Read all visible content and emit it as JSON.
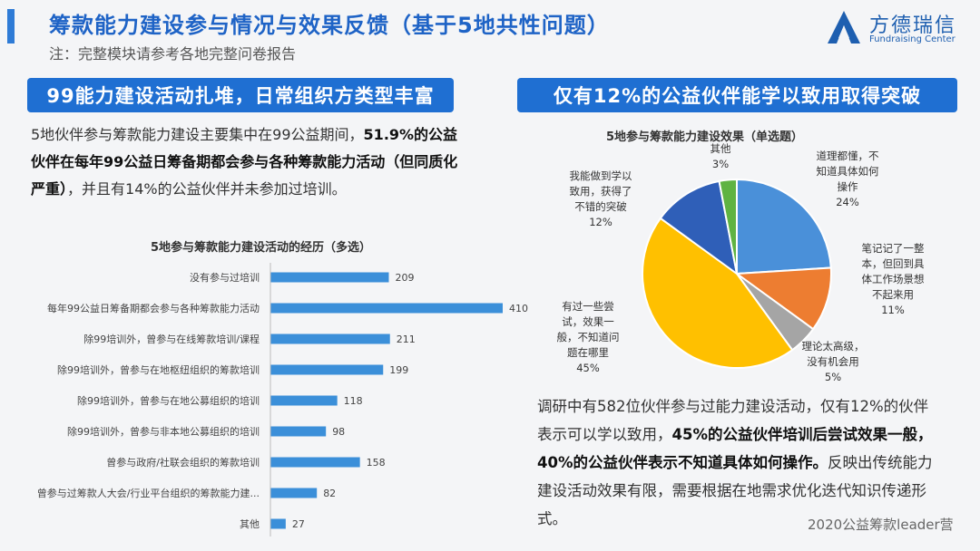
{
  "header": {
    "title": "筹款能力建设参与情况与效果反馈（基于5地共性问题）",
    "subtitle": "注：完整模块请参考各地完整问卷报告"
  },
  "logo": {
    "name": "方德瑞信",
    "english": "Fundraising Center"
  },
  "left": {
    "banner": "99能力建设活动扎堆，日常组织方类型丰富",
    "para_1": "5地伙伴参与筹款能力建设主要集中在99公益期间，",
    "para_2": "51.9%的公益伙伴在每年99公益日筹备期都会参与各种筹款能力活动（但同质化严重）",
    "para_3": "，并且有14%的公益伙伴并未参加过培训。"
  },
  "right": {
    "banner": "仅有12%的公益伙伴能学以致用取得突破",
    "para_1": "调研中有582位伙伴参与过能力建设活动，仅有12%的伙伴表示可以学以致用，",
    "para_2": "45%的公益伙伴培训后尝试效果一般，40%的公益伙伴表示不知道具体如何操作。",
    "para_3": "反映出传统能力建设活动效果有限，需要根据在地需求优化迭代知识传递形式。"
  },
  "footer": "2020公益筹款leader营",
  "colors": {
    "bar": "#3b8fd9",
    "pie": [
      "#4a90d9",
      "#ed7d31",
      "#a5a5a5",
      "#ffc000",
      "#2f5fb8",
      "#5fb342"
    ]
  },
  "chart_data": [
    {
      "type": "bar",
      "orientation": "horizontal",
      "title": "5地参与筹款能力建设活动的经历（多选）",
      "categories": [
        "没有参与过培训",
        "每年99公益日筹备期都会参与各种筹款能力活动",
        "除99培训外，曾参与在线筹款培训/课程",
        "除99培训外，曾参与在地枢纽组织的筹款培训",
        "除99培训外，曾参与在地公募组织的培训",
        "除99培训外，曾参与非本地公募组织的培训",
        "曾参与政府/社联会组织的筹款培训",
        "曾参与过筹款人大会/行业平台组织的筹款能力建...",
        "其他"
      ],
      "values": [
        209,
        410,
        211,
        199,
        118,
        98,
        158,
        82,
        27
      ],
      "grid": false
    },
    {
      "type": "pie",
      "title": "5地参与筹款能力建设效果（单选题）",
      "slices": [
        {
          "label": "道理都懂，不知道具体如何操作",
          "lines": [
            "道理都懂，不",
            "知道具体如何",
            "操作"
          ],
          "value": 24,
          "value_text": "24%"
        },
        {
          "label": "笔记记了一整本，但回到具体工作场景想不起来用",
          "lines": [
            "笔记记了一整",
            "本，但回到具",
            "体工作场景想",
            "不起来用"
          ],
          "value": 11,
          "value_text": "11%"
        },
        {
          "label": "理论太高级，没有机会用",
          "lines": [
            "理论太高级，",
            "没有机会用"
          ],
          "value": 5,
          "value_text": "5%"
        },
        {
          "label": "有过一些尝试，效果一般，不知道问题在哪里",
          "lines": [
            "有过一些尝",
            "试，效果一",
            "般，不知道问",
            "题在哪里"
          ],
          "value": 45,
          "value_text": "45%"
        },
        {
          "label": "我能做到学以致用，获得了不错的突破",
          "lines": [
            "我能做到学以",
            "致用，获得了",
            "不错的突破"
          ],
          "value": 12,
          "value_text": "12%"
        },
        {
          "label": "其他",
          "lines": [
            "其他"
          ],
          "value": 3,
          "value_text": "3%"
        }
      ]
    }
  ]
}
